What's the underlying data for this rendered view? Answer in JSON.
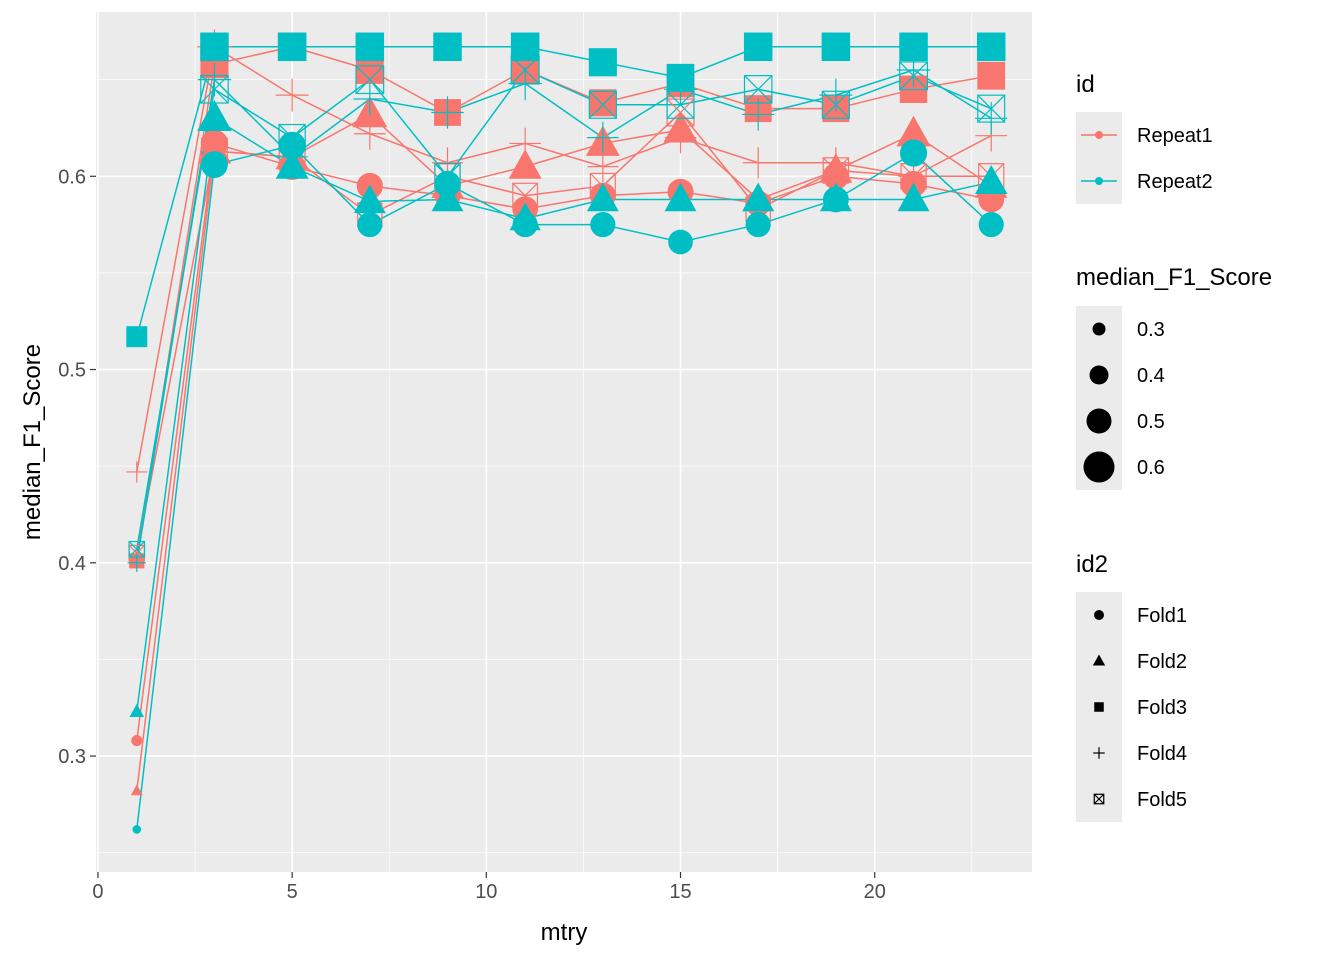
{
  "chart_data": {
    "type": "line",
    "xlabel": "mtry",
    "ylabel": "median_F1_Score",
    "xlim": [
      -0.05,
      24.05
    ],
    "ylim": [
      0.24,
      0.685
    ],
    "x_ticks": [
      0,
      5,
      10,
      15,
      20
    ],
    "y_ticks": [
      0.3,
      0.4,
      0.5,
      0.6
    ],
    "x_tick_labels": [
      "0",
      "5",
      "10",
      "15",
      "20"
    ],
    "y_tick_labels": [
      "0.3",
      "0.4",
      "0.5",
      "0.6"
    ],
    "grid": true,
    "legend_position": "right",
    "x": [
      1,
      3,
      5,
      7,
      9,
      11,
      13,
      15,
      17,
      19,
      21,
      23
    ],
    "series": [
      {
        "id": "Repeat1",
        "id2": "Fold1",
        "values": [
          0.308,
          0.617,
          0.605,
          0.595,
          0.59,
          0.583,
          0.59,
          0.592,
          0.586,
          0.6,
          0.596,
          0.588
        ]
      },
      {
        "id": "Repeat1",
        "id2": "Fold2",
        "values": [
          0.282,
          0.613,
          0.61,
          0.632,
          0.595,
          0.605,
          0.617,
          0.624,
          0.588,
          0.603,
          0.622,
          0.595
        ]
      },
      {
        "id": "Repeat1",
        "id2": "Fold3",
        "values": [
          0.401,
          0.658,
          0.667,
          0.655,
          0.633,
          0.655,
          0.638,
          0.648,
          0.635,
          0.635,
          0.645,
          0.652
        ]
      },
      {
        "id": "Repeat1",
        "id2": "Fold4",
        "values": [
          0.447,
          0.667,
          0.642,
          0.622,
          0.607,
          0.617,
          0.605,
          0.62,
          0.607,
          0.607,
          0.6,
          0.621
        ]
      },
      {
        "id": "Repeat1",
        "id2": "Fold5",
        "values": [
          0.405,
          0.613,
          0.61,
          0.58,
          0.6,
          0.59,
          0.595,
          0.633,
          0.583,
          0.603,
          0.6,
          0.6
        ]
      },
      {
        "id": "Repeat2",
        "id2": "Fold1",
        "values": [
          0.262,
          0.606,
          0.616,
          0.575,
          0.596,
          0.575,
          0.575,
          0.566,
          0.575,
          0.588,
          0.612,
          0.575
        ]
      },
      {
        "id": "Repeat2",
        "id2": "Fold2",
        "values": [
          0.323,
          0.63,
          0.605,
          0.587,
          0.588,
          0.578,
          0.588,
          0.588,
          0.588,
          0.588,
          0.588,
          0.597
        ]
      },
      {
        "id": "Repeat2",
        "id2": "Fold3",
        "values": [
          0.517,
          0.667,
          0.667,
          0.667,
          0.667,
          0.667,
          0.659,
          0.651,
          0.667,
          0.667,
          0.667,
          0.667
        ]
      },
      {
        "id": "Repeat2",
        "id2": "Fold4",
        "values": [
          0.4,
          0.65,
          0.61,
          0.64,
          0.633,
          0.648,
          0.62,
          0.645,
          0.632,
          0.642,
          0.655,
          0.63
        ]
      },
      {
        "id": "Repeat2",
        "id2": "Fold5",
        "values": [
          0.407,
          0.645,
          0.62,
          0.65,
          0.6,
          0.655,
          0.637,
          0.637,
          0.645,
          0.637,
          0.652,
          0.635
        ]
      }
    ],
    "colors": {
      "Repeat1": "#F8766D",
      "Repeat2": "#00BFC4"
    },
    "legends": {
      "id": {
        "title": "id",
        "items": [
          "Repeat1",
          "Repeat2"
        ]
      },
      "size": {
        "title": "median_F1_Score",
        "items": [
          "0.3",
          "0.4",
          "0.5",
          "0.6"
        ]
      },
      "shape": {
        "title": "id2",
        "items": [
          "Fold1",
          "Fold2",
          "Fold3",
          "Fold4",
          "Fold5"
        ]
      }
    }
  }
}
